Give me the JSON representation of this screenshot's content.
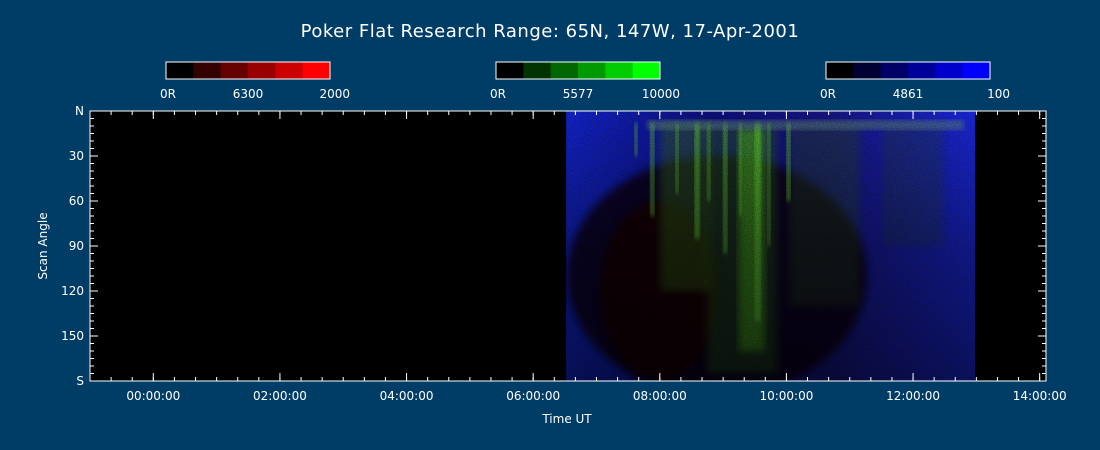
{
  "chart_data": {
    "type": "heatmap",
    "title": "Poker Flat Research Range: 65N, 147W, 17-Apr-2001",
    "xlabel": "Time UT",
    "ylabel": "Scan Angle",
    "x_range_hours": [
      -1,
      14.1
    ],
    "y_range_deg": [
      0,
      180
    ],
    "x_ticks": [
      {
        "value": 0,
        "label": "00:00:00"
      },
      {
        "value": 2,
        "label": "02:00:00"
      },
      {
        "value": 4,
        "label": "04:00:00"
      },
      {
        "value": 6,
        "label": "06:00:00"
      },
      {
        "value": 8,
        "label": "08:00:00"
      },
      {
        "value": 10,
        "label": "10:00:00"
      },
      {
        "value": 12,
        "label": "12:00:00"
      },
      {
        "value": 14,
        "label": "14:00:00"
      }
    ],
    "y_ticks": [
      {
        "value": 0,
        "label": "N"
      },
      {
        "value": 30,
        "label": "30"
      },
      {
        "value": 60,
        "label": "60"
      },
      {
        "value": 90,
        "label": "90"
      },
      {
        "value": 120,
        "label": "120"
      },
      {
        "value": 150,
        "label": "150"
      },
      {
        "value": 180,
        "label": "S"
      }
    ],
    "data_coverage_hours": [
      6.52,
      12.98
    ],
    "colorbars": [
      {
        "name": "6300",
        "min_label": "0R",
        "max_label": "2000",
        "colors": [
          "#000000",
          "#330000",
          "#660000",
          "#990000",
          "#cc0000",
          "#ff0000"
        ]
      },
      {
        "name": "5577",
        "min_label": "0R",
        "max_label": "10000",
        "colors": [
          "#000000",
          "#003300",
          "#006600",
          "#009900",
          "#00cc00",
          "#00ff00"
        ]
      },
      {
        "name": "4861",
        "min_label": "0R",
        "max_label": "100",
        "colors": [
          "#000000",
          "#000033",
          "#000066",
          "#000099",
          "#0000cc",
          "#0000ff"
        ]
      }
    ],
    "legend_placement": "top",
    "grid": false
  }
}
